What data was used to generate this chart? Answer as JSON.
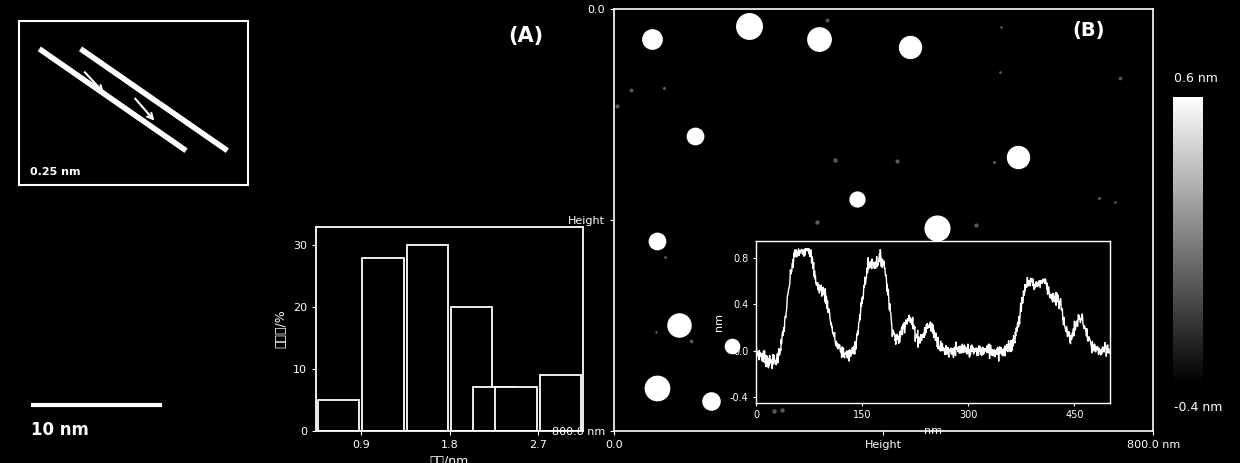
{
  "panel_A": {
    "label": "(A)",
    "bg_color": "#000000",
    "inset_top": {
      "label": "0.25 nm",
      "bg_color": "#000000"
    },
    "scale_bar_text": "10 nm",
    "histogram": {
      "centers": [
        0.675,
        1.125,
        1.575,
        2.025,
        2.25,
        2.475,
        2.925
      ],
      "heights": [
        5,
        28,
        30,
        20,
        7,
        7,
        9
      ],
      "bar_width": 0.42,
      "xlabel": "尺寸/nm",
      "ylabel": "百分比/%",
      "xticks": [
        0.9,
        1.8,
        2.7
      ],
      "yticks": [
        0,
        10,
        20,
        30
      ],
      "xlim": [
        0.45,
        3.15
      ],
      "ylim": [
        0,
        33
      ],
      "bg_color": "#000000",
      "bar_facecolor": "#000000",
      "bar_edgecolor": "#ffffff",
      "text_color": "#ffffff",
      "spine_color": "#ffffff"
    }
  },
  "panel_B": {
    "label": "(B)",
    "bg_color": "#000000",
    "colorbar": {
      "top_label": "0.6 nm",
      "bottom_label": "-0.4 nm"
    },
    "white_spots": [
      [
        0.07,
        0.93
      ],
      [
        0.25,
        0.96
      ],
      [
        0.38,
        0.93
      ],
      [
        0.55,
        0.91
      ],
      [
        0.15,
        0.7
      ],
      [
        0.08,
        0.45
      ],
      [
        0.45,
        0.55
      ],
      [
        0.6,
        0.48
      ],
      [
        0.75,
        0.65
      ],
      [
        0.12,
        0.25
      ],
      [
        0.22,
        0.2
      ],
      [
        0.38,
        0.18
      ],
      [
        0.08,
        0.1
      ],
      [
        0.18,
        0.07
      ],
      [
        0.48,
        0.12
      ]
    ],
    "inset_profile": {
      "xlabel": "nm",
      "ylabel": "nm",
      "yticks": [
        -0.4,
        0.0,
        0.4,
        0.8
      ],
      "xtick_labels": [
        "0",
        "150",
        "300",
        "450"
      ],
      "xtick_vals": [
        0,
        150,
        300,
        450
      ],
      "xlim": [
        0,
        500
      ],
      "ylim": [
        -0.45,
        0.95
      ],
      "line_color": "#ffffff",
      "bg_color": "#000000",
      "spine_color": "#ffffff"
    }
  }
}
